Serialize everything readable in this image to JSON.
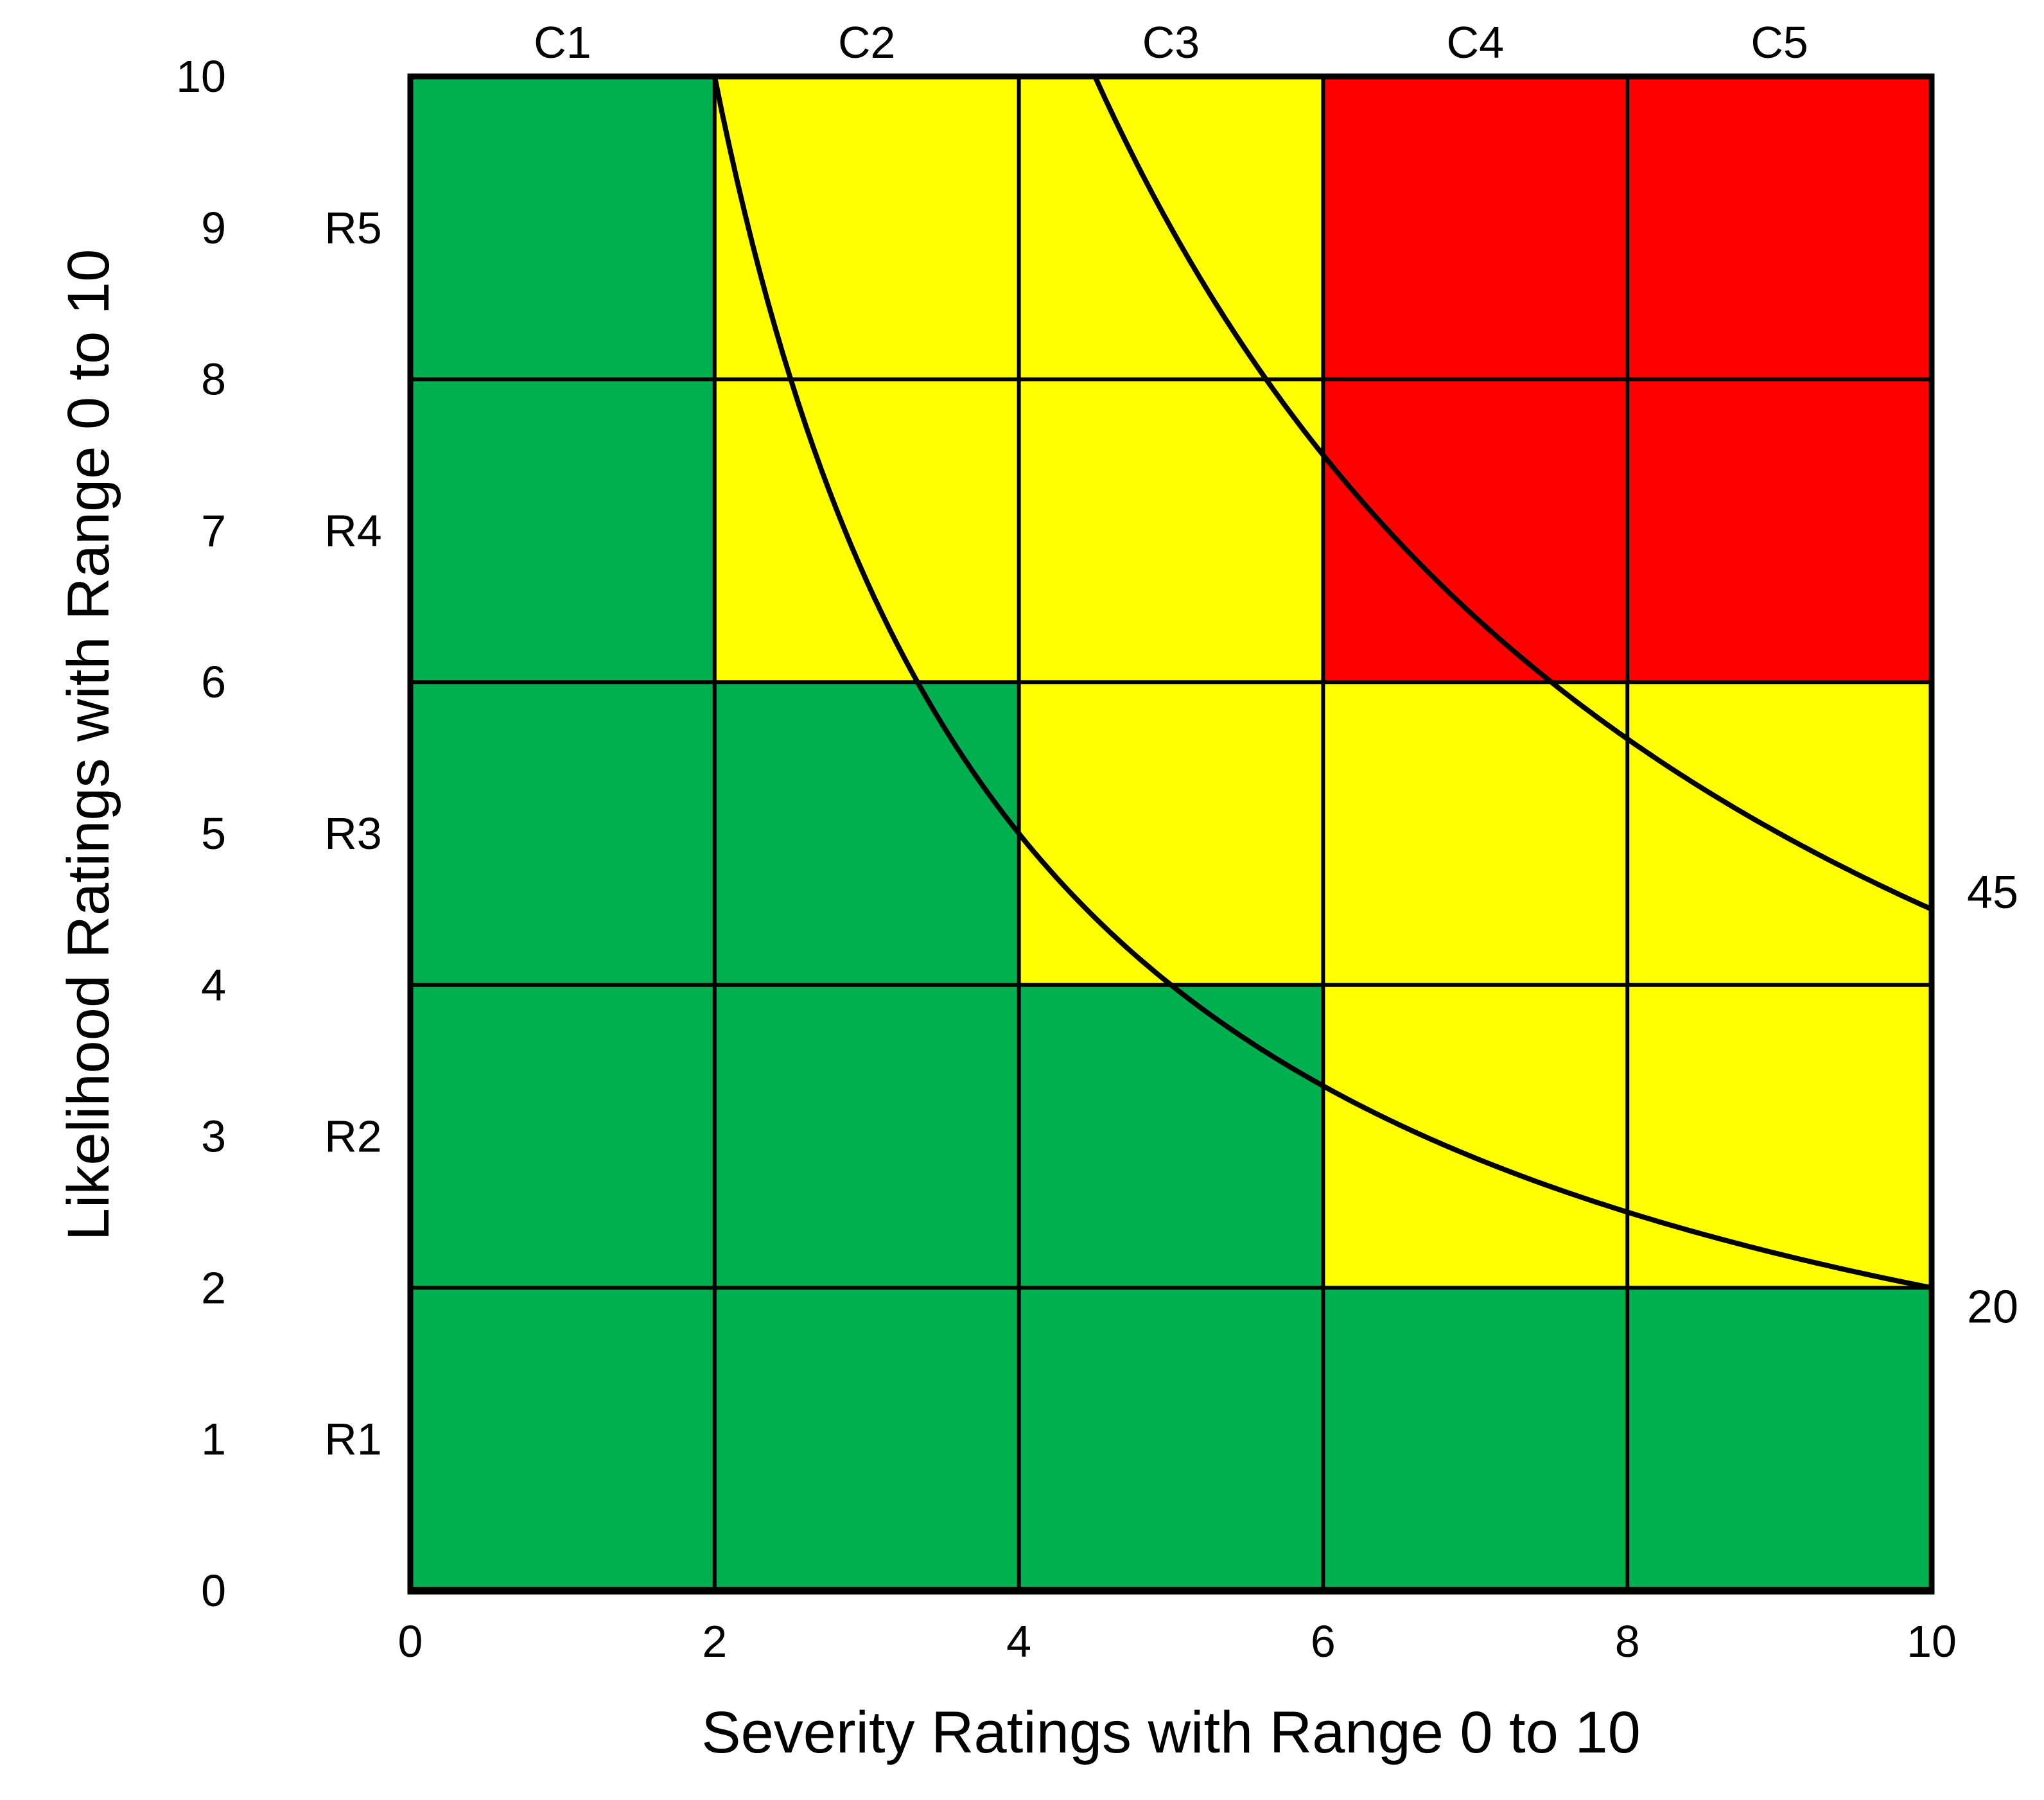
{
  "chart_data": {
    "type": "heatmap",
    "title": "",
    "xlabel": "Severity Ratings with Range 0 to 10",
    "ylabel": "Likelihood Ratings with Range 0 to 10",
    "xlim": [
      0,
      10
    ],
    "ylim": [
      0,
      10
    ],
    "grid": "on",
    "legend": "none",
    "x_ticks": [
      {
        "label": "0",
        "value": 0
      },
      {
        "label": "2",
        "value": 2
      },
      {
        "label": "4",
        "value": 4
      },
      {
        "label": "6",
        "value": 6
      },
      {
        "label": "8",
        "value": 8
      },
      {
        "label": "10",
        "value": 10
      }
    ],
    "y_ticks": [
      {
        "label": "0",
        "value": 0
      },
      {
        "label": "1",
        "value": 1
      },
      {
        "label": "2",
        "value": 2
      },
      {
        "label": "3",
        "value": 3
      },
      {
        "label": "4",
        "value": 4
      },
      {
        "label": "5",
        "value": 5
      },
      {
        "label": "6",
        "value": 6
      },
      {
        "label": "7",
        "value": 7
      },
      {
        "label": "8",
        "value": 8
      },
      {
        "label": "9",
        "value": 9
      },
      {
        "label": "10",
        "value": 10
      }
    ],
    "column_labels": [
      {
        "label": "C1",
        "x": 1
      },
      {
        "label": "C2",
        "x": 3
      },
      {
        "label": "C3",
        "x": 5
      },
      {
        "label": "C4",
        "x": 7
      },
      {
        "label": "C5",
        "x": 9
      }
    ],
    "row_labels": [
      {
        "label": "R1",
        "y": 1
      },
      {
        "label": "R2",
        "y": 3
      },
      {
        "label": "R3",
        "y": 5
      },
      {
        "label": "R4",
        "y": 7
      },
      {
        "label": "R5",
        "y": 9
      }
    ],
    "cells": {
      "rows_top_to_bottom": [
        "R5",
        "R4",
        "R3",
        "R2",
        "R1"
      ],
      "columns_left_to_right": [
        "C1",
        "C2",
        "C3",
        "C4",
        "C5"
      ],
      "row_likelihood_bands_top_to_bottom": [
        [
          8,
          10
        ],
        [
          6,
          8
        ],
        [
          4,
          6
        ],
        [
          2,
          4
        ],
        [
          0,
          2
        ]
      ],
      "column_severity_bands_left_to_right": [
        [
          0,
          2
        ],
        [
          2,
          4
        ],
        [
          4,
          6
        ],
        [
          6,
          8
        ],
        [
          8,
          10
        ]
      ],
      "colors_by_row": [
        [
          "green",
          "yellow",
          "yellow",
          "red",
          "red"
        ],
        [
          "green",
          "yellow",
          "yellow",
          "red",
          "red"
        ],
        [
          "green",
          "green",
          "yellow",
          "yellow",
          "yellow"
        ],
        [
          "green",
          "green",
          "green",
          "yellow",
          "yellow"
        ],
        [
          "green",
          "green",
          "green",
          "green",
          "green"
        ]
      ]
    },
    "palette": {
      "green": "#00B050",
      "yellow": "#FFFF00",
      "red": "#FF0000",
      "line": "#000000",
      "background": "#FFFFFF"
    },
    "contours": [
      {
        "label": "45",
        "value": 45,
        "equation": "severity * likelihood = 45",
        "x_start": 4.5,
        "x_end": 10
      },
      {
        "label": "20",
        "value": 20,
        "equation": "severity * likelihood = 20",
        "x_start": 2,
        "x_end": 10
      }
    ]
  }
}
